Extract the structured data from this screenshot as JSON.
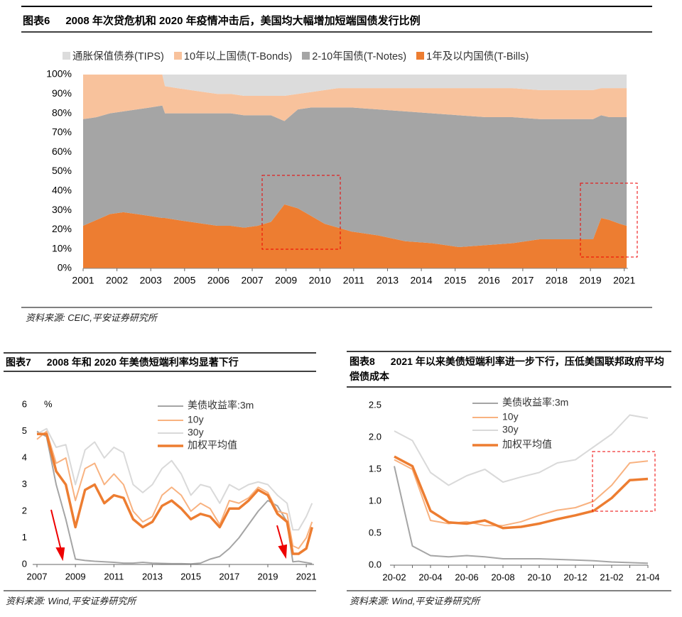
{
  "chart_data": [
    {
      "type": "stacked_area",
      "figure": "图表6",
      "title": "2008 年次贷危机和 2020 年疫情冲击后，美国均大幅增加短端国债发行比例",
      "source": "资料来源: CEIC,平安证券研究所",
      "x": [
        2001,
        2001.5,
        2002,
        2002.5,
        2003,
        2003.5,
        2003.95,
        2004.05,
        2004.5,
        2005,
        2005.5,
        2006,
        2006.5,
        2007,
        2007.5,
        2008,
        2008.5,
        2009,
        2009.5,
        2010,
        2010.5,
        2011,
        2012,
        2013,
        2014,
        2015,
        2016,
        2017,
        2018,
        2019,
        2019.5,
        2020,
        2020.3,
        2020.6,
        2021,
        2021.25
      ],
      "series": [
        {
          "name": "通胀保值债券(TIPS)",
          "color": "#dcdcdc",
          "values": [
            0,
            0,
            0,
            0,
            0,
            0,
            0,
            6,
            7,
            8,
            9,
            10,
            10,
            11,
            11,
            11,
            11,
            10,
            9,
            8,
            7,
            7,
            7,
            7,
            7,
            7,
            7,
            7,
            8,
            8,
            8,
            8,
            7,
            7,
            7,
            7
          ]
        },
        {
          "name": "10年以上国债(T-Bonds)",
          "color": "#f8c29c",
          "values": [
            23,
            22,
            20,
            19,
            18,
            17,
            16,
            14,
            13,
            12,
            11,
            10,
            10,
            10,
            10,
            10,
            13,
            8,
            8,
            9,
            10,
            10,
            11,
            12,
            13,
            14,
            15,
            15,
            15,
            15,
            15,
            15,
            14,
            15,
            15,
            15
          ]
        },
        {
          "name": "2-10年国债(T-Notes)",
          "color": "#a5a5a5",
          "values": [
            55,
            53,
            52,
            52,
            54,
            56,
            58,
            54,
            55,
            56,
            57,
            58,
            58,
            58,
            57,
            55,
            43,
            51,
            56,
            60,
            62,
            64,
            65,
            67,
            67,
            68,
            66,
            65,
            62,
            62,
            62,
            62,
            53,
            53,
            55,
            56
          ]
        },
        {
          "name": "1年及以内国债(T-Bills)",
          "color": "#ed7d31",
          "values": [
            22,
            25,
            28,
            29,
            28,
            27,
            26,
            26,
            25,
            24,
            23,
            22,
            22,
            21,
            22,
            24,
            33,
            31,
            27,
            23,
            21,
            19,
            17,
            14,
            13,
            11,
            12,
            13,
            15,
            15,
            15,
            15,
            26,
            25,
            23,
            22
          ]
        }
      ],
      "xlim": [
        2001,
        2021.3
      ],
      "xticks": [
        {
          "value": 2001,
          "label": "2001"
        },
        {
          "value": 2002.26,
          "label": "2002"
        },
        {
          "value": 2003.52,
          "label": "2003"
        },
        {
          "value": 2004.78,
          "label": "2005"
        },
        {
          "value": 2006.04,
          "label": "2006"
        },
        {
          "value": 2007.3,
          "label": "2007"
        },
        {
          "value": 2008.56,
          "label": "2009"
        },
        {
          "value": 2009.82,
          "label": "2010"
        },
        {
          "value": 2011.08,
          "label": "2011"
        },
        {
          "value": 2012.34,
          "label": "2013"
        },
        {
          "value": 2013.6,
          "label": "2014"
        },
        {
          "value": 2014.86,
          "label": "2015"
        },
        {
          "value": 2016.12,
          "label": "2016"
        },
        {
          "value": 2017.38,
          "label": "2017"
        },
        {
          "value": 2018.64,
          "label": "2018"
        },
        {
          "value": 2019.9,
          "label": "2019"
        },
        {
          "value": 2021.16,
          "label": "2021"
        }
      ],
      "ylim": [
        0,
        100
      ],
      "yticks": [
        {
          "value": 0,
          "label": "0%"
        },
        {
          "value": 10,
          "label": "10%"
        },
        {
          "value": 20,
          "label": "20%"
        },
        {
          "value": 30,
          "label": "30%"
        },
        {
          "value": 40,
          "label": "40%"
        },
        {
          "value": 50,
          "label": "50%"
        },
        {
          "value": 60,
          "label": "60%"
        },
        {
          "value": 70,
          "label": "70%"
        },
        {
          "value": 80,
          "label": "80%"
        },
        {
          "value": 90,
          "label": "90%"
        },
        {
          "value": 100,
          "label": "100%"
        }
      ],
      "grid": false
    },
    {
      "type": "line",
      "figure": "图表7",
      "title": "2008 年和 2020 年美债短端利率均显著下行",
      "source": "资料来源: Wind,平安证券研究所",
      "y_unit": "%",
      "x": [
        2007,
        2007.5,
        2008,
        2008.5,
        2009,
        2009.5,
        2010,
        2010.5,
        2011,
        2011.5,
        2012,
        2012.5,
        2013,
        2013.5,
        2014,
        2014.5,
        2015,
        2015.5,
        2016,
        2016.5,
        2017,
        2017.5,
        2018,
        2018.5,
        2019,
        2019.5,
        2020,
        2020.3,
        2020.6,
        2021,
        2021.3
      ],
      "series": [
        {
          "name": "美债收益率:3m",
          "color": "#a5a5a5",
          "width": 2,
          "values": [
            5.0,
            4.8,
            3.0,
            1.7,
            0.2,
            0.15,
            0.12,
            0.1,
            0.08,
            0.05,
            0.05,
            0.08,
            0.05,
            0.04,
            0.03,
            0.03,
            0.02,
            0.05,
            0.2,
            0.3,
            0.6,
            1.0,
            1.5,
            2.0,
            2.4,
            2.2,
            1.6,
            0.1,
            0.12,
            0.07,
            0.03
          ]
        },
        {
          "name": "10y",
          "color": "#f8b280",
          "width": 2,
          "values": [
            4.7,
            5.0,
            3.8,
            4.0,
            2.4,
            3.6,
            3.8,
            3.0,
            3.4,
            3.0,
            2.0,
            1.6,
            1.8,
            2.6,
            2.9,
            2.6,
            2.0,
            2.3,
            2.1,
            1.5,
            2.4,
            2.3,
            2.5,
            2.9,
            2.7,
            2.0,
            1.9,
            0.7,
            0.6,
            1.0,
            1.6
          ]
        },
        {
          "name": "30y",
          "color": "#d9d9d9",
          "width": 2,
          "values": [
            4.9,
            5.1,
            4.4,
            4.5,
            3.0,
            4.3,
            4.6,
            4.0,
            4.4,
            4.2,
            3.0,
            2.7,
            3.0,
            3.6,
            3.9,
            3.4,
            2.6,
            3.0,
            2.9,
            2.3,
            3.0,
            2.8,
            3.0,
            3.1,
            3.0,
            2.6,
            2.3,
            1.3,
            1.3,
            1.8,
            2.3
          ]
        },
        {
          "name": "加权平均值",
          "color": "#ed7d31",
          "width": 3.5,
          "values": [
            4.9,
            4.9,
            3.5,
            3.0,
            1.4,
            2.8,
            3.0,
            2.3,
            2.6,
            2.5,
            1.7,
            1.4,
            1.6,
            2.2,
            2.4,
            2.1,
            1.7,
            1.9,
            1.8,
            1.4,
            2.1,
            2.1,
            2.4,
            2.8,
            2.6,
            1.9,
            1.6,
            0.4,
            0.4,
            0.6,
            1.4
          ]
        }
      ],
      "xlim": [
        2007,
        2021.4
      ],
      "xticks": [
        2007,
        2009,
        2011,
        2013,
        2015,
        2017,
        2019,
        2021
      ],
      "ylim": [
        0,
        6
      ],
      "yticks": [
        0,
        1,
        2,
        3,
        4,
        5,
        6
      ],
      "grid": false
    },
    {
      "type": "line",
      "figure": "图表8",
      "title": "2021 年以来美债短端利率进一步下行，压低美国联邦政府平均偿债成本",
      "source": "资料来源: Wind,平安证券研究所",
      "categories": [
        "20-02",
        null,
        "20-04",
        null,
        "20-06",
        null,
        "20-08",
        null,
        "20-10",
        null,
        "20-12",
        null,
        "21-02",
        null,
        "21-04"
      ],
      "series": [
        {
          "name": "美债收益率:3m",
          "color": "#a5a5a5",
          "width": 2,
          "values": [
            1.55,
            0.3,
            0.15,
            0.13,
            0.15,
            0.13,
            0.1,
            0.1,
            0.1,
            0.09,
            0.08,
            0.07,
            0.05,
            0.04,
            0.03
          ]
        },
        {
          "name": "10y",
          "color": "#f8b280",
          "width": 2,
          "values": [
            1.65,
            1.5,
            0.7,
            0.65,
            0.68,
            0.62,
            0.62,
            0.68,
            0.78,
            0.86,
            0.9,
            1.0,
            1.25,
            1.6,
            1.63
          ]
        },
        {
          "name": "30y",
          "color": "#d9d9d9",
          "width": 2,
          "values": [
            2.1,
            1.95,
            1.45,
            1.25,
            1.4,
            1.5,
            1.3,
            1.38,
            1.45,
            1.6,
            1.65,
            1.85,
            2.05,
            2.35,
            2.3
          ]
        },
        {
          "name": "加权平均值",
          "color": "#ed7d31",
          "width": 3.5,
          "values": [
            1.7,
            1.55,
            0.85,
            0.67,
            0.65,
            0.7,
            0.58,
            0.6,
            0.65,
            0.72,
            0.78,
            0.85,
            1.05,
            1.33,
            1.35
          ]
        }
      ],
      "ylim": [
        0,
        2.5
      ],
      "yticks": [
        {
          "value": 0,
          "label": "0.0"
        },
        {
          "value": 0.5,
          "label": "0.5"
        },
        {
          "value": 1,
          "label": "1.0"
        },
        {
          "value": 1.5,
          "label": "1.5"
        },
        {
          "value": 2,
          "label": "2.0"
        },
        {
          "value": 2.5,
          "label": "2.5"
        }
      ],
      "grid": false
    }
  ]
}
